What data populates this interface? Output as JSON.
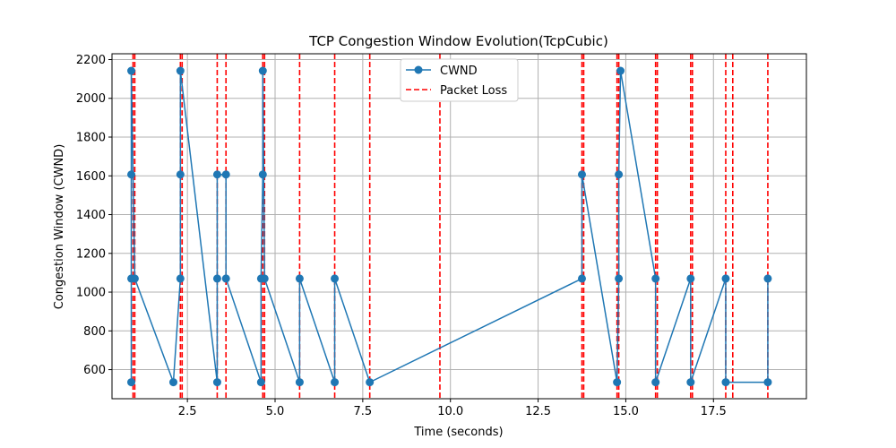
{
  "chart_data": {
    "type": "line",
    "title": "TCP Congestion Window Evolution(TcpCubic)",
    "xlabel": "Time (seconds)",
    "ylabel": "Congestion Window (CWND)",
    "xlim": [
      0.35,
      20.15
    ],
    "ylim": [
      450,
      2230
    ],
    "xticks": [
      2.5,
      5.0,
      7.5,
      10.0,
      12.5,
      15.0,
      17.5
    ],
    "xtick_labels": [
      "2.5",
      "5.0",
      "7.5",
      "10.0",
      "12.5",
      "15.0",
      "17.5"
    ],
    "yticks": [
      600,
      800,
      1000,
      1200,
      1400,
      1600,
      1800,
      2000,
      2200
    ],
    "ytick_labels": [
      "600",
      "800",
      "1000",
      "1200",
      "1400",
      "1600",
      "1800",
      "2000",
      "2200"
    ],
    "grid": true,
    "legend_position": "top-center",
    "series": [
      {
        "name": "CWND",
        "color": "#1f77b4",
        "style": "solid-with-markers",
        "x": [
          0.9,
          0.9,
          0.9,
          0.9,
          1.0,
          2.1,
          2.3,
          2.3,
          2.3,
          3.35,
          3.35,
          3.35,
          3.6,
          3.6,
          4.6,
          4.6,
          4.65,
          4.65,
          4.7,
          5.7,
          5.7,
          6.7,
          6.7,
          7.7,
          13.75,
          13.75,
          14.75,
          14.8,
          14.8,
          14.85,
          15.85,
          15.85,
          16.85,
          16.85,
          17.85,
          17.85,
          19.05,
          19.05
        ],
        "y": [
          535,
          1070,
          1607,
          2142,
          1070,
          535,
          1070,
          1607,
          2142,
          535,
          1070,
          1607,
          1607,
          1070,
          535,
          1070,
          1607,
          2142,
          1070,
          535,
          1070,
          535,
          1070,
          535,
          1070,
          1607,
          535,
          1070,
          1607,
          2142,
          1070,
          535,
          1070,
          535,
          1070,
          535,
          535,
          1070
        ]
      },
      {
        "name": "Packet Loss",
        "color": "#ff0000",
        "style": "dashed-vertical",
        "x": [
          0.95,
          1.0,
          2.3,
          2.35,
          3.35,
          3.6,
          4.65,
          4.7,
          5.7,
          6.7,
          7.7,
          9.7,
          13.75,
          13.8,
          14.75,
          14.8,
          15.85,
          15.9,
          16.85,
          16.9,
          17.85,
          18.05,
          19.05
        ]
      }
    ]
  }
}
